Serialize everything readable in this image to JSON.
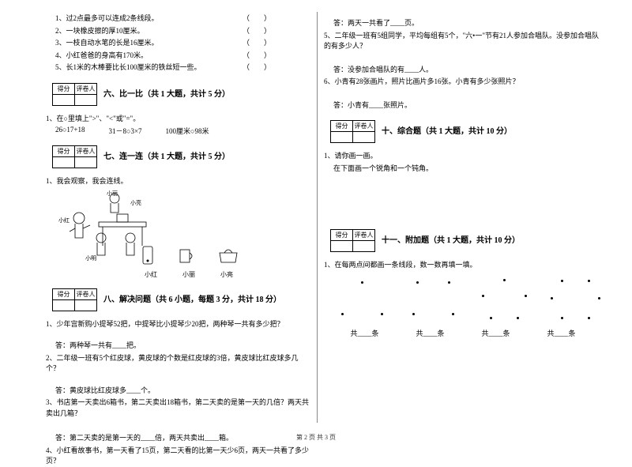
{
  "col_left": {
    "judge_items": [
      {
        "num": "1",
        "text": "过2点最多可以连成2条线段。"
      },
      {
        "num": "2",
        "text": "一块橡皮擦的厚10厘米。"
      },
      {
        "num": "3",
        "text": "一枝自动水笔的长是16厘米。"
      },
      {
        "num": "4",
        "text": "小红爸爸的身高有170米。"
      },
      {
        "num": "5",
        "text": "长1米的木棒要比长100厘米的铁丝短一些。"
      }
    ],
    "score_label_1": "得分",
    "score_label_2": "评卷人",
    "section6_title": "六、比一比（共 1 大题，共计 5 分）",
    "q6_stem": "1、在○里填上\">\"、\"<\"或\"=\"。",
    "q6_items": [
      "26○17+18",
      "31－8○3×7",
      "100厘米○98米"
    ],
    "section7_title": "七、连一连（共 1 大题，共计 5 分）",
    "q7_stem": "1、我会观察，我会连线。",
    "kids_labels": {
      "a": "小丽",
      "b": "小亮",
      "c": "小红",
      "d": "小明"
    },
    "obj_names": [
      "小红",
      "小丽",
      "小亮"
    ],
    "section8_title": "八、解决问题（共 6 小题，每题 3 分，共计 18 分）",
    "q8_1": "1、少年宫新购小提琴52把，中提琴比小提琴少20把，两种琴一共有多少把？",
    "q8_1a": "答：两种琴一共有____把。",
    "q8_2": "2、二年级一班有5个红皮球，黄皮球的个数是红皮球的3倍，黄皮球比红皮球多几个？",
    "q8_2a": "答：黄皮球比红皮球多____个。",
    "q8_3": "3、书店第一天卖出6箱书，第二天卖出18箱书，第二天卖的是第一天的几倍？两天共卖出几箱？",
    "q8_3a": "答：第二天卖的是第一天的____倍，两天共卖出____箱。",
    "q8_4": "4、小红看故事书，第一天看了15页，第二天看的比第一天少6页，两天一共看了多少页？"
  },
  "col_right": {
    "q8_4a": "答：两天一共看了____页。",
    "q8_5": "5、二年级一班有5组同学，平均每组有5个，\"六•一\"节有21人参加合唱队。没参加合唱队的有多少人？",
    "q8_5a": "答：没参加合唱队的有____人。",
    "q8_6": "6、小青有28张画片，照片比画片多16张。小青有多少张照片？",
    "q8_6a": "答：小青有____张照片。",
    "score_label_1": "得分",
    "score_label_2": "评卷人",
    "section10_title": "十、综合题（共 1 大题，共计 10 分）",
    "q10_1": "1、请你画一画。",
    "q10_1b": "在下面画一个锐角和一个钝角。",
    "section11_title": "十一、附加题（共 1 大题，共计 10 分）",
    "q11_1": "1、在每两点间都画一条线段，数一数再填一填。",
    "fill_label": "共____条",
    "dot_groups": [
      [
        [
          35,
          5
        ],
        [
          10,
          45
        ],
        [
          60,
          45
        ]
      ],
      [
        [
          15,
          5
        ],
        [
          55,
          5
        ],
        [
          10,
          45
        ],
        [
          60,
          45
        ]
      ],
      [
        [
          35,
          2
        ],
        [
          8,
          22
        ],
        [
          62,
          22
        ],
        [
          18,
          50
        ],
        [
          52,
          50
        ]
      ],
      [
        [
          18,
          3
        ],
        [
          52,
          3
        ],
        [
          5,
          25
        ],
        [
          65,
          25
        ],
        [
          18,
          50
        ],
        [
          52,
          50
        ]
      ]
    ]
  },
  "footer": "第 2 页 共 3 页",
  "colors": {
    "text": "#000000",
    "bg": "#ffffff",
    "divider": "#888888"
  }
}
